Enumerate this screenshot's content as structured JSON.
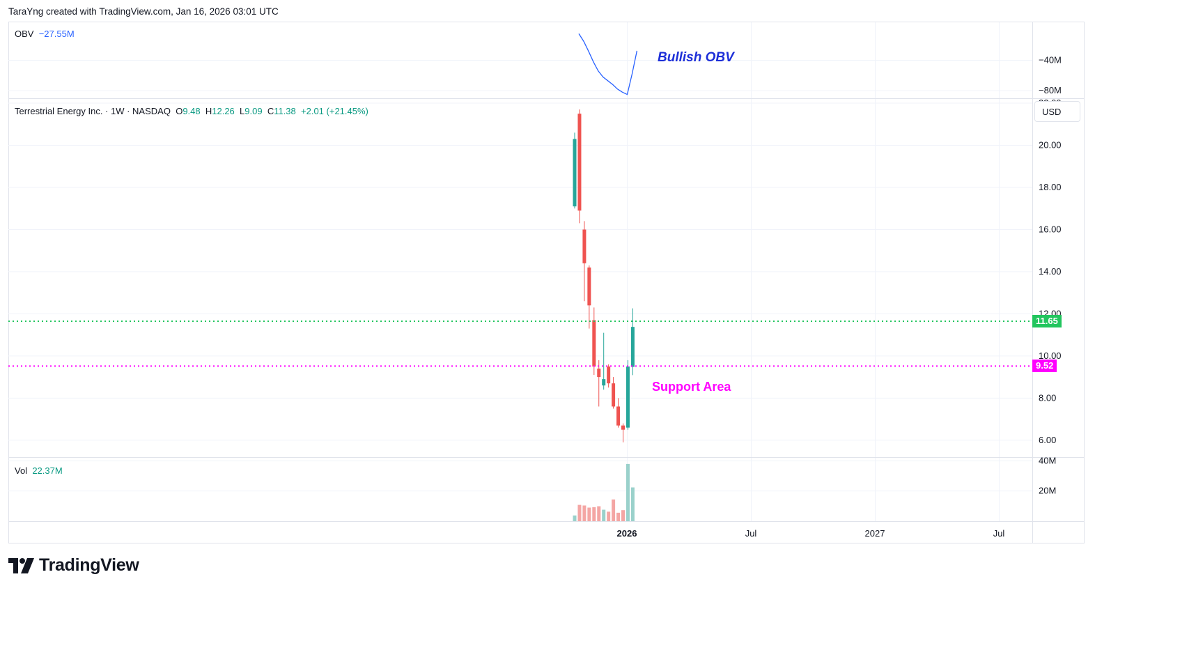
{
  "header": {
    "text": "TaraYng created with TradingView.com, Jan 16, 2026 03:01 UTC"
  },
  "legends": {
    "obv": {
      "label": "OBV",
      "value": "−27.55M"
    },
    "main": {
      "title": "Terrestrial Energy Inc. · 1W · NASDAQ",
      "o_label": "O",
      "o": "9.48",
      "h_label": "H",
      "h": "12.26",
      "l_label": "L",
      "l": "9.09",
      "c_label": "C",
      "c": "11.38",
      "change": "+2.01 (+21.45%)"
    },
    "vol": {
      "label": "Vol",
      "value": "22.37M"
    }
  },
  "currency": "USD",
  "annotations": {
    "obv": "Bullish OBV",
    "support": "Support Area"
  },
  "price_tags": [
    {
      "value": "11.65",
      "color": "#22c55e"
    },
    {
      "value": "9.52",
      "color": "#ff00ff"
    }
  ],
  "logo": {
    "text": "TradingView"
  },
  "colors": {
    "up": "#26a69a",
    "down": "#ef5350",
    "obv": "#2962ff",
    "resistance": "#22c55e",
    "support": "#ff00ff",
    "vol_up": "#9ad1cb",
    "vol_down": "#f4a6a4"
  },
  "chart_data": {
    "type": "candlestick",
    "symbol": "Terrestrial Energy Inc.",
    "interval": "1W",
    "exchange": "NASDAQ",
    "price_axis": {
      "ylim": [
        5.2,
        22.2
      ],
      "ticks": [
        "6.00",
        "8.00",
        "10.00",
        "12.00",
        "14.00",
        "16.00",
        "18.00",
        "20.00",
        "22.00"
      ]
    },
    "obv_axis": {
      "ylim": [
        -90,
        10
      ],
      "ticks": [
        "−40M",
        "−80M"
      ]
    },
    "vol_axis": {
      "ylim": [
        0,
        42
      ],
      "ticks": [
        "20M",
        "40M"
      ]
    },
    "time_axis": {
      "ticks": [
        "2026",
        "Jul",
        "2027",
        "Jul"
      ]
    },
    "candles": [
      {
        "o": 17.1,
        "h": 20.6,
        "l": 17.0,
        "c": 20.3
      },
      {
        "o": 21.5,
        "h": 21.7,
        "l": 16.3,
        "c": 16.9
      },
      {
        "o": 16.0,
        "h": 16.4,
        "l": 12.6,
        "c": 14.4
      },
      {
        "o": 14.2,
        "h": 14.3,
        "l": 11.3,
        "c": 12.4
      },
      {
        "o": 11.7,
        "h": 12.3,
        "l": 9.1,
        "c": 9.5
      },
      {
        "o": 9.4,
        "h": 9.8,
        "l": 7.6,
        "c": 9.0
      },
      {
        "o": 8.6,
        "h": 11.1,
        "l": 8.4,
        "c": 8.9
      },
      {
        "o": 9.5,
        "h": 9.6,
        "l": 8.5,
        "c": 8.7
      },
      {
        "o": 8.7,
        "h": 9.0,
        "l": 7.5,
        "c": 7.6
      },
      {
        "o": 7.6,
        "h": 8.0,
        "l": 6.6,
        "c": 6.7
      },
      {
        "o": 6.7,
        "h": 6.8,
        "l": 5.9,
        "c": 6.5
      },
      {
        "o": 6.6,
        "h": 9.8,
        "l": 6.5,
        "c": 9.5
      },
      {
        "o": 9.48,
        "h": 12.26,
        "l": 9.09,
        "c": 11.38
      }
    ],
    "volume": [
      3.8,
      10.8,
      10.4,
      9.0,
      9.3,
      9.9,
      7.6,
      6.3,
      14.4,
      5.6,
      7.3,
      37.9,
      22.37
    ],
    "obv": [
      -5,
      -15,
      -28,
      -42,
      -54,
      -62,
      -67,
      -72,
      -78,
      -82,
      -85,
      -58,
      -27.55
    ],
    "levels": [
      {
        "name": "resistance",
        "value": 11.65
      },
      {
        "name": "support",
        "value": 9.52
      }
    ]
  }
}
